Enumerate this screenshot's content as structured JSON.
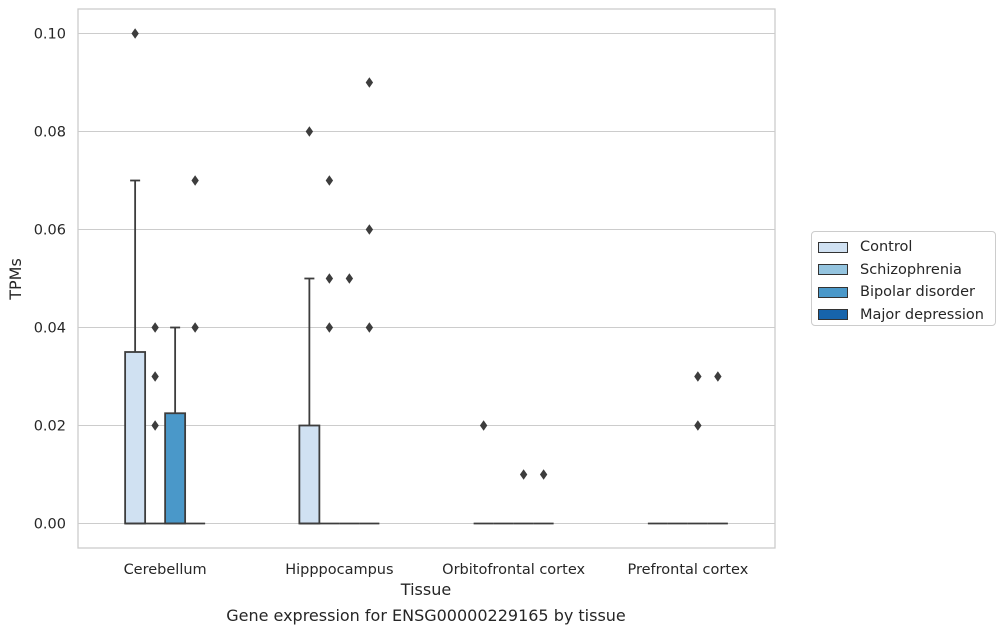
{
  "chart_data": {
    "type": "box",
    "caption": "Gene expression for ENSG00000229165 by tissue",
    "xlabel": "Tissue",
    "ylabel": "TPMs",
    "ylim": [
      -0.005,
      0.105
    ],
    "yticks": [
      "0.00",
      "0.02",
      "0.04",
      "0.06",
      "0.08",
      "0.10"
    ],
    "categories": [
      "Cerebellum",
      "Hipppocampus",
      "Orbitofrontal cortex",
      "Prefrontal cortex"
    ],
    "grid": true,
    "legend_position": "right",
    "series": [
      {
        "name": "Control",
        "color": "#d0e1f2"
      },
      {
        "name": "Schizophrenia",
        "color": "#94c4df"
      },
      {
        "name": "Bipolar disorder",
        "color": "#4a98c9"
      },
      {
        "name": "Major depression",
        "color": "#1764ab"
      }
    ],
    "boxes": [
      [
        {
          "q1": 0,
          "median": 0,
          "q3": 0.035,
          "whisker_low": 0,
          "whisker_high": 0.07,
          "fliers": [
            0.1
          ]
        },
        {
          "q1": 0,
          "median": 0,
          "q3": 0,
          "whisker_low": 0,
          "whisker_high": 0,
          "fliers": [
            0.04,
            0.03,
            0.02
          ]
        },
        {
          "q1": 0,
          "median": 0,
          "q3": 0.0225,
          "whisker_low": 0,
          "whisker_high": 0.04,
          "fliers": []
        },
        {
          "q1": 0,
          "median": 0,
          "q3": 0,
          "whisker_low": 0,
          "whisker_high": 0,
          "fliers": [
            0.07,
            0.04
          ]
        }
      ],
      [
        {
          "q1": 0,
          "median": 0,
          "q3": 0.02,
          "whisker_low": 0,
          "whisker_high": 0.05,
          "fliers": [
            0.08
          ]
        },
        {
          "q1": 0,
          "median": 0,
          "q3": 0,
          "whisker_low": 0,
          "whisker_high": 0,
          "fliers": [
            0.07,
            0.05,
            0.04
          ]
        },
        {
          "q1": 0,
          "median": 0,
          "q3": 0,
          "whisker_low": 0,
          "whisker_high": 0,
          "fliers": [
            0.05
          ]
        },
        {
          "q1": 0,
          "median": 0,
          "q3": 0,
          "whisker_low": 0,
          "whisker_high": 0,
          "fliers": [
            0.09,
            0.06,
            0.04
          ]
        }
      ],
      [
        {
          "q1": 0,
          "median": 0,
          "q3": 0,
          "whisker_low": 0,
          "whisker_high": 0,
          "fliers": [
            0.02
          ]
        },
        {
          "q1": 0,
          "median": 0,
          "q3": 0,
          "whisker_low": 0,
          "whisker_high": 0,
          "fliers": []
        },
        {
          "q1": 0,
          "median": 0,
          "q3": 0,
          "whisker_low": 0,
          "whisker_high": 0,
          "fliers": [
            0.01
          ]
        },
        {
          "q1": 0,
          "median": 0,
          "q3": 0,
          "whisker_low": 0,
          "whisker_high": 0,
          "fliers": [
            0.01
          ]
        }
      ],
      [
        {
          "q1": 0,
          "median": 0,
          "q3": 0,
          "whisker_low": 0,
          "whisker_high": 0,
          "fliers": []
        },
        {
          "q1": 0,
          "median": 0,
          "q3": 0,
          "whisker_low": 0,
          "whisker_high": 0,
          "fliers": []
        },
        {
          "q1": 0,
          "median": 0,
          "q3": 0,
          "whisker_low": 0,
          "whisker_high": 0,
          "fliers": [
            0.03,
            0.02
          ]
        },
        {
          "q1": 0,
          "median": 0,
          "q3": 0,
          "whisker_low": 0,
          "whisker_high": 0,
          "fliers": [
            0.03
          ]
        }
      ]
    ]
  }
}
